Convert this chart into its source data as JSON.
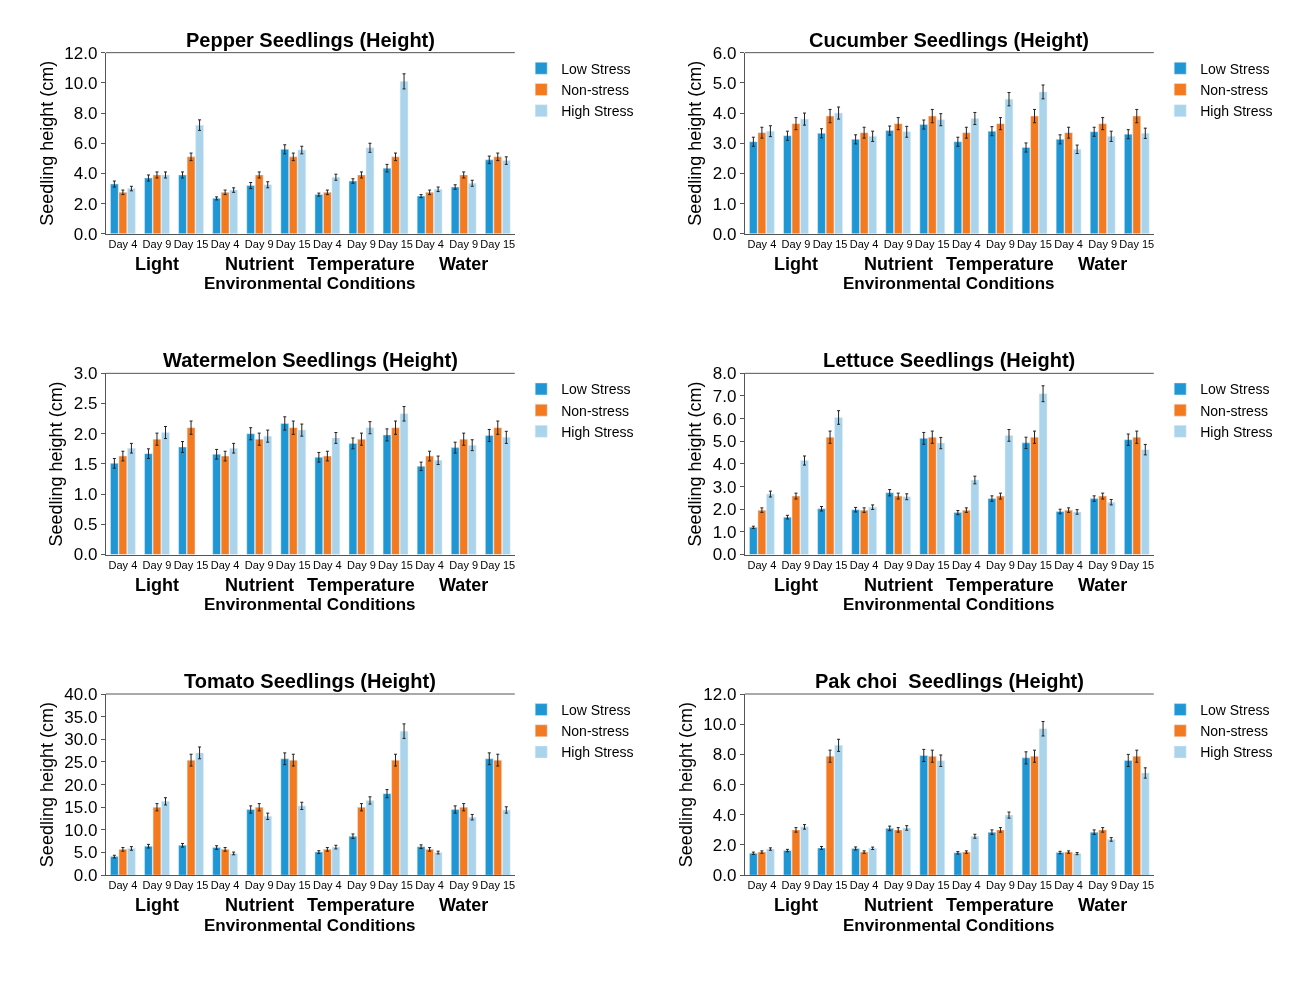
{
  "chart_data": [
    {
      "type": "bar",
      "title": "Pepper Seedlings (Height)",
      "xlabel": "Environmental Conditions",
      "ylabel": "Seedling height (cm)",
      "categories": [
        "Day 4",
        "Day 9",
        "Day 15",
        "Day 4",
        "Day 9",
        "Day 15",
        "Day 4",
        "Day 9",
        "Day 15",
        "Day 4",
        "Day 9",
        "Day 15"
      ],
      "annotations": [
        "Light",
        "Nutrient",
        "Temperature",
        "Water"
      ],
      "ylim": [
        0,
        12
      ],
      "yticks": [
        {
          "value": 0,
          "label": "0.0"
        },
        {
          "value": 2,
          "label": "2.0"
        },
        {
          "value": 4,
          "label": "4.0"
        },
        {
          "value": 6,
          "label": "6.0"
        },
        {
          "value": 8,
          "label": "8.0"
        },
        {
          "value": 10,
          "label": "10.0"
        },
        {
          "value": 12,
          "label": "12.0"
        }
      ],
      "legend": "top right",
      "series": [
        {
          "name": "Low Stress",
          "color": "#1f97d4",
          "values": [
            3.3,
            3.7,
            3.9,
            2.35,
            3.2,
            5.6,
            2.6,
            3.5,
            4.35,
            2.5,
            3.1,
            4.9
          ],
          "errors": [
            0.2,
            0.2,
            0.2,
            0.1,
            0.2,
            0.3,
            0.1,
            0.15,
            0.25,
            0.1,
            0.15,
            0.25
          ]
        },
        {
          "name": "Non-stress",
          "color": "#f47a20",
          "values": [
            2.75,
            3.9,
            5.1,
            2.75,
            3.9,
            5.1,
            2.75,
            3.9,
            5.1,
            2.75,
            3.9,
            5.1
          ],
          "errors": [
            0.15,
            0.2,
            0.25,
            0.15,
            0.2,
            0.25,
            0.15,
            0.2,
            0.25,
            0.15,
            0.2,
            0.25
          ]
        },
        {
          "name": "High Stress",
          "color": "#a9d4ec",
          "values": [
            3.0,
            3.9,
            7.2,
            2.9,
            3.25,
            5.55,
            3.75,
            5.7,
            10.1,
            2.95,
            3.35,
            4.85
          ],
          "errors": [
            0.15,
            0.2,
            0.35,
            0.15,
            0.2,
            0.25,
            0.2,
            0.3,
            0.5,
            0.15,
            0.2,
            0.25
          ]
        }
      ]
    },
    {
      "type": "bar",
      "title": "Cucumber Seedlings (Height)",
      "xlabel": "Environmental Conditions",
      "ylabel": "Seedling height (cm)",
      "categories": [
        "Day 4",
        "Day 9",
        "Day 15",
        "Day 4",
        "Day 9",
        "Day 15",
        "Day 4",
        "Day 9",
        "Day 15",
        "Day 4",
        "Day 9",
        "Day 15"
      ],
      "annotations": [
        "Light",
        "Nutrient",
        "Temperature",
        "Water"
      ],
      "ylim": [
        0,
        6
      ],
      "yticks": [
        {
          "value": 0,
          "label": "0.0"
        },
        {
          "value": 1,
          "label": "1.0"
        },
        {
          "value": 2,
          "label": "2.0"
        },
        {
          "value": 3,
          "label": "3.0"
        },
        {
          "value": 4,
          "label": "4.0"
        },
        {
          "value": 5,
          "label": "5.0"
        },
        {
          "value": 6,
          "label": "6.0"
        }
      ],
      "legend": "top right",
      "series": [
        {
          "name": "Low Stress",
          "color": "#1f97d4",
          "values": [
            3.05,
            3.25,
            3.33,
            3.13,
            3.42,
            3.62,
            3.05,
            3.4,
            2.86,
            3.13,
            3.38,
            3.3
          ],
          "errors": [
            0.15,
            0.15,
            0.15,
            0.15,
            0.15,
            0.15,
            0.15,
            0.15,
            0.15,
            0.15,
            0.15,
            0.15
          ]
        },
        {
          "name": "Non-stress",
          "color": "#f47a20",
          "values": [
            3.35,
            3.65,
            3.9,
            3.35,
            3.65,
            3.9,
            3.35,
            3.65,
            3.9,
            3.35,
            3.65,
            3.9
          ],
          "errors": [
            0.18,
            0.2,
            0.22,
            0.18,
            0.2,
            0.22,
            0.18,
            0.2,
            0.22,
            0.18,
            0.2,
            0.22
          ]
        },
        {
          "name": "High Stress",
          "color": "#a9d4ec",
          "values": [
            3.4,
            3.8,
            4.0,
            3.23,
            3.38,
            3.78,
            3.82,
            4.46,
            4.7,
            2.8,
            3.23,
            3.33
          ],
          "errors": [
            0.18,
            0.2,
            0.2,
            0.17,
            0.18,
            0.2,
            0.2,
            0.22,
            0.23,
            0.14,
            0.17,
            0.17
          ]
        }
      ]
    },
    {
      "type": "bar",
      "title": "Watermelon Seedlings (Height)",
      "xlabel": "Environmental Conditions",
      "ylabel": "Seedling height (cm)",
      "categories": [
        "Day 4",
        "Day 9",
        "Day 15",
        "Day 4",
        "Day 9",
        "Day 15",
        "Day 4",
        "Day 9",
        "Day 15",
        "Day 4",
        "Day 9",
        "Day 15"
      ],
      "annotations": [
        "Light",
        "Nutrient",
        "Temperature",
        "Water"
      ],
      "ylim": [
        0,
        3
      ],
      "yticks": [
        {
          "value": 0,
          "label": "0.0"
        },
        {
          "value": 0.5,
          "label": "0.5"
        },
        {
          "value": 1,
          "label": "1.0"
        },
        {
          "value": 1.5,
          "label": "1.5"
        },
        {
          "value": 2,
          "label": "2.0"
        },
        {
          "value": 2.5,
          "label": "2.5"
        },
        {
          "value": 3,
          "label": "3.0"
        }
      ],
      "legend": "top right",
      "series": [
        {
          "name": "Low Stress",
          "color": "#1f97d4",
          "values": [
            1.51,
            1.67,
            1.78,
            1.66,
            2.0,
            2.17,
            1.61,
            1.84,
            1.98,
            1.46,
            1.77,
            1.97
          ],
          "errors": [
            0.08,
            0.08,
            0.09,
            0.08,
            0.1,
            0.11,
            0.08,
            0.09,
            0.1,
            0.07,
            0.09,
            0.1
          ]
        },
        {
          "name": "Non-stress",
          "color": "#f47a20",
          "values": [
            1.63,
            1.91,
            2.1,
            1.63,
            1.91,
            2.1,
            1.63,
            1.91,
            2.1,
            1.63,
            1.91,
            2.1
          ],
          "errors": [
            0.08,
            0.1,
            0.11,
            0.08,
            0.1,
            0.11,
            0.08,
            0.1,
            0.11,
            0.08,
            0.1,
            0.11
          ]
        },
        {
          "name": "High Stress",
          "color": "#a9d4ec",
          "values": [
            1.76,
            2.02,
            null,
            1.76,
            1.96,
            2.06,
            1.93,
            2.1,
            2.33,
            1.56,
            1.81,
            1.94
          ],
          "errors": [
            0.08,
            0.1,
            null,
            0.08,
            0.1,
            0.1,
            0.09,
            0.1,
            0.12,
            0.07,
            0.09,
            0.1
          ]
        }
      ]
    },
    {
      "type": "bar",
      "title": "Lettuce Seedlings (Height)",
      "xlabel": "Environmental Conditions",
      "ylabel": "Seedling height (cm)",
      "categories": [
        "Day 4",
        "Day 9",
        "Day 15",
        "Day 4",
        "Day 9",
        "Day 15",
        "Day 4",
        "Day 9",
        "Day 15",
        "Day 4",
        "Day 9",
        "Day 15"
      ],
      "annotations": [
        "Light",
        "Nutrient",
        "Temperature",
        "Water"
      ],
      "ylim": [
        0,
        8
      ],
      "yticks": [
        {
          "value": 0,
          "label": "0.0"
        },
        {
          "value": 1,
          "label": "1.0"
        },
        {
          "value": 2,
          "label": "2.0"
        },
        {
          "value": 3,
          "label": "3.0"
        },
        {
          "value": 4,
          "label": "4.0"
        },
        {
          "value": 5,
          "label": "5.0"
        },
        {
          "value": 6,
          "label": "6.0"
        },
        {
          "value": 7,
          "label": "7.0"
        },
        {
          "value": 8,
          "label": "8.0"
        }
      ],
      "legend": "top right",
      "series": [
        {
          "name": "Low Stress",
          "color": "#1f97d4",
          "values": [
            1.2,
            1.65,
            2.02,
            1.98,
            2.73,
            5.13,
            1.85,
            2.47,
            4.93,
            1.9,
            2.47,
            5.07
          ],
          "errors": [
            0.05,
            0.08,
            0.1,
            0.1,
            0.14,
            0.26,
            0.09,
            0.12,
            0.25,
            0.1,
            0.12,
            0.25
          ]
        },
        {
          "name": "Non-stress",
          "color": "#f47a20",
          "values": [
            1.96,
            2.58,
            5.18,
            1.96,
            2.58,
            5.18,
            1.96,
            2.58,
            5.18,
            1.96,
            2.58,
            5.18
          ],
          "errors": [
            0.1,
            0.13,
            0.27,
            0.1,
            0.13,
            0.27,
            0.1,
            0.13,
            0.27,
            0.1,
            0.13,
            0.27
          ]
        },
        {
          "name": "High Stress",
          "color": "#a9d4ec",
          "values": [
            2.67,
            4.15,
            6.05,
            2.09,
            2.55,
            4.92,
            3.29,
            5.26,
            7.1,
            1.88,
            2.31,
            4.63
          ],
          "errors": [
            0.13,
            0.2,
            0.3,
            0.1,
            0.13,
            0.25,
            0.17,
            0.26,
            0.35,
            0.1,
            0.12,
            0.23
          ]
        }
      ]
    },
    {
      "type": "bar",
      "title": "Tomato Seedlings (Height)",
      "xlabel": "Environmental Conditions",
      "ylabel": "Seedling height (cm)",
      "categories": [
        "Day 4",
        "Day 9",
        "Day 15",
        "Day 4",
        "Day 9",
        "Day 15",
        "Day 4",
        "Day 9",
        "Day 15",
        "Day 4",
        "Day 9",
        "Day 15"
      ],
      "annotations": [
        "Light",
        "Nutrient",
        "Temperature",
        "Water"
      ],
      "ylim": [
        0,
        40
      ],
      "yticks": [
        {
          "value": 0,
          "label": "0.0"
        },
        {
          "value": 5,
          "label": "5.0"
        },
        {
          "value": 10,
          "label": "10.0"
        },
        {
          "value": 15,
          "label": "15.0"
        },
        {
          "value": 20,
          "label": "20.0"
        },
        {
          "value": 25,
          "label": "25.0"
        },
        {
          "value": 30,
          "label": "30.0"
        },
        {
          "value": 35,
          "label": "35.0"
        },
        {
          "value": 40,
          "label": "40.0"
        }
      ],
      "legend": "top right",
      "series": [
        {
          "name": "Low Stress",
          "color": "#1f97d4",
          "values": [
            4.1,
            6.4,
            6.6,
            6.1,
            14.5,
            25.7,
            5.1,
            8.6,
            18.0,
            6.3,
            14.5,
            25.7
          ],
          "errors": [
            0.3,
            0.4,
            0.4,
            0.4,
            0.8,
            1.3,
            0.3,
            0.5,
            0.9,
            0.4,
            0.8,
            1.3
          ]
        },
        {
          "name": "Non-stress",
          "color": "#f47a20",
          "values": [
            5.7,
            15.0,
            25.4,
            5.7,
            15.0,
            25.4,
            5.7,
            15.0,
            25.4,
            5.7,
            15.0,
            25.4
          ],
          "errors": [
            0.4,
            0.8,
            1.3,
            0.4,
            0.8,
            1.3,
            0.4,
            0.8,
            1.3,
            0.4,
            0.8,
            1.3
          ]
        },
        {
          "name": "High Stress",
          "color": "#a9d4ec",
          "values": [
            5.9,
            16.3,
            27.0,
            4.8,
            13.0,
            15.3,
            6.2,
            16.5,
            31.8,
            5.0,
            12.8,
            14.4
          ],
          "errors": [
            0.4,
            0.8,
            1.3,
            0.3,
            0.7,
            0.8,
            0.4,
            0.8,
            1.6,
            0.3,
            0.6,
            0.7
          ]
        }
      ]
    },
    {
      "type": "bar",
      "title": "Pak choi  Seedlings (Height)",
      "xlabel": "Environmental Conditions",
      "ylabel": "Seedling height (cm)",
      "categories": [
        "Day 4",
        "Day 9",
        "Day 15",
        "Day 4",
        "Day 9",
        "Day 15",
        "Day 4",
        "Day 9",
        "Day 15",
        "Day 4",
        "Day 9",
        "Day 15"
      ],
      "annotations": [
        "Light",
        "Nutrient",
        "Temperature",
        "Water"
      ],
      "ylim": [
        0,
        12
      ],
      "yticks": [
        {
          "value": 0,
          "label": "0.0"
        },
        {
          "value": 2,
          "label": "2.0"
        },
        {
          "value": 4,
          "label": "4.0"
        },
        {
          "value": 6,
          "label": "6.0"
        },
        {
          "value": 8,
          "label": "8.0"
        },
        {
          "value": 10,
          "label": "10.0"
        },
        {
          "value": 12,
          "label": "12.0"
        }
      ],
      "legend": "top right",
      "series": [
        {
          "name": "Low Stress",
          "color": "#1f97d4",
          "values": [
            1.45,
            1.63,
            1.8,
            1.77,
            3.1,
            7.93,
            1.48,
            2.85,
            7.77,
            1.5,
            2.85,
            7.6
          ],
          "errors": [
            0.08,
            0.08,
            0.1,
            0.1,
            0.15,
            0.4,
            0.08,
            0.15,
            0.4,
            0.08,
            0.15,
            0.4
          ]
        },
        {
          "name": "Non-stress",
          "color": "#f47a20",
          "values": [
            1.53,
            3.0,
            7.88,
            1.53,
            3.0,
            7.88,
            1.53,
            3.0,
            7.88,
            1.53,
            3.0,
            7.88
          ],
          "errors": [
            0.08,
            0.15,
            0.4,
            0.08,
            0.15,
            0.4,
            0.08,
            0.15,
            0.4,
            0.08,
            0.15,
            0.4
          ]
        },
        {
          "name": "High Stress",
          "color": "#a9d4ec",
          "values": [
            1.73,
            3.2,
            8.6,
            1.78,
            3.13,
            7.58,
            2.58,
            3.98,
            9.7,
            1.43,
            2.37,
            6.77
          ],
          "errors": [
            0.08,
            0.15,
            0.4,
            0.08,
            0.15,
            0.38,
            0.13,
            0.2,
            0.48,
            0.07,
            0.12,
            0.34
          ]
        }
      ]
    }
  ]
}
